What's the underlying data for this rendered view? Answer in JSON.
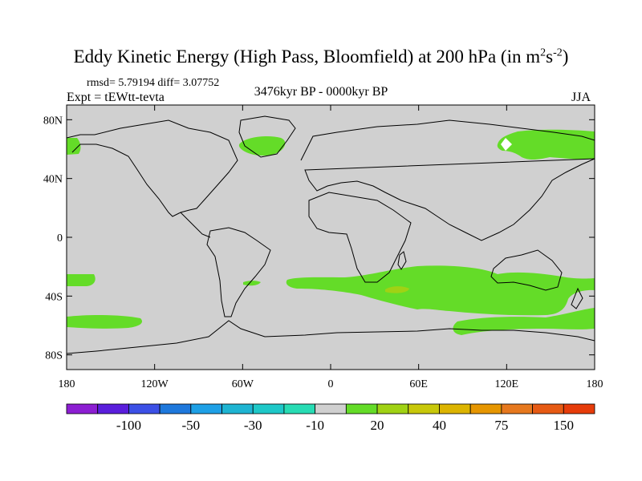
{
  "title_main": "Eddy Kinetic Energy (High Pass, Bloomfield) at 200 hPa (in m",
  "title_sup1": "2",
  "title_mid": "s",
  "title_sup2": "-2",
  "title_end": ")",
  "stats": "rmsd= 5.79194 diff= 3.07752",
  "expt": "Expt = tEWtt-tevta",
  "period": "3476kyr BP - 0000kyr BP",
  "season": "JJA",
  "map": {
    "projection": "cylindrical-equidistant",
    "lon_range": [
      -180,
      180
    ],
    "lat_range": [
      -90,
      90
    ],
    "lat_ticks": [
      {
        "value": 80,
        "label": "80N"
      },
      {
        "value": 40,
        "label": "40N"
      },
      {
        "value": 0,
        "label": "0"
      },
      {
        "value": -40,
        "label": "40S"
      },
      {
        "value": -80,
        "label": "80S"
      }
    ],
    "lon_ticks": [
      {
        "value": -180,
        "label": "180"
      },
      {
        "value": -120,
        "label": "120W"
      },
      {
        "value": -60,
        "label": "60W"
      },
      {
        "value": 0,
        "label": "0"
      },
      {
        "value": 60,
        "label": "60E"
      },
      {
        "value": 120,
        "label": "120E"
      },
      {
        "value": 180,
        "label": "180"
      }
    ],
    "background_color": "#d0d0d0",
    "coastline_color": "#000000"
  },
  "colorbar": {
    "colors": [
      "#8c1ed2",
      "#5a1edc",
      "#3c50e6",
      "#1e78dc",
      "#1ea0e6",
      "#1eb4d2",
      "#1ec8c8",
      "#28dcb4",
      "#d0d0d0",
      "#64dc28",
      "#a0d214",
      "#c8c80a",
      "#dcb400",
      "#e69600",
      "#e6781e",
      "#e65a14",
      "#e63c0a"
    ],
    "labels": [
      "-100",
      "-50",
      "-30",
      "-10",
      "20",
      "40",
      "75",
      "150"
    ],
    "label_after_box": [
      1,
      3,
      5,
      7,
      9,
      11,
      13,
      15
    ]
  }
}
